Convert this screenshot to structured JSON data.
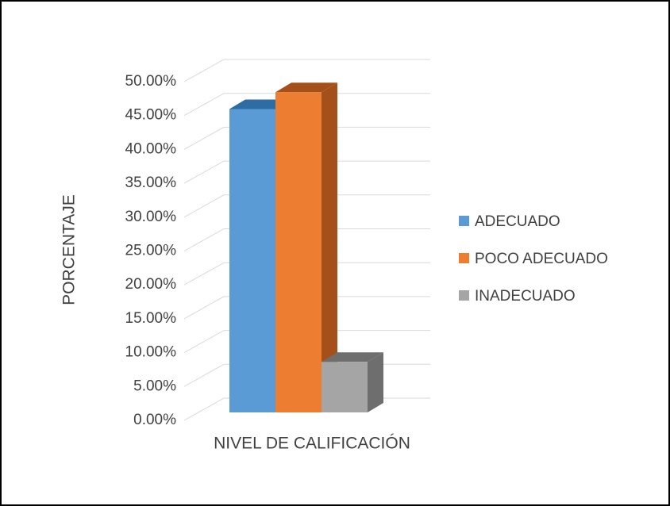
{
  "chart_data": {
    "type": "bar3d",
    "categories": [
      "NIVEL DE CALIFICACIÓN"
    ],
    "y_label": "PORCENTAJE",
    "series": [
      {
        "name": "ADECUADO",
        "color": "#5b9bd5",
        "side_color": "#2e6da4",
        "values": [
          45
        ]
      },
      {
        "name": "POCO ADECUADO",
        "color": "#ed7d31",
        "side_color": "#a5501a",
        "values": [
          47.5
        ]
      },
      {
        "name": "INADECUADO",
        "color": "#a5a5a5",
        "side_color": "#6e6e6e",
        "values": [
          7.5
        ]
      }
    ],
    "ylim": [
      0,
      50
    ],
    "yticks": [
      {
        "value": 0,
        "label": "0.00%"
      },
      {
        "value": 5,
        "label": "5.00%"
      },
      {
        "value": 10,
        "label": "10.00%"
      },
      {
        "value": 15,
        "label": "15.00%"
      },
      {
        "value": 20,
        "label": "20.00%"
      },
      {
        "value": 25,
        "label": "25.00%"
      },
      {
        "value": 30,
        "label": "30.00%"
      },
      {
        "value": 35,
        "label": "35.00%"
      },
      {
        "value": 40,
        "label": "40.00%"
      },
      {
        "value": 45,
        "label": "45.00%"
      },
      {
        "value": 50,
        "label": "50.00%"
      }
    ],
    "grid": true,
    "legend": "right"
  }
}
